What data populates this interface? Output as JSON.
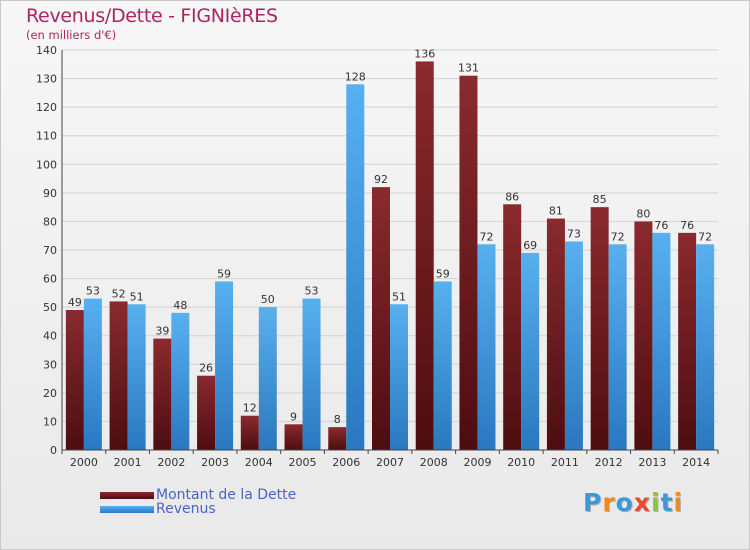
{
  "header": {
    "title": "Revenus/Dette - FIGNIèRES",
    "subtitle": "(en milliers d'€)"
  },
  "legend": {
    "debt_label": "Montant de la Dette",
    "revenue_label": "Revenus"
  },
  "logo": {
    "text": "Proxiti",
    "letter_colors": [
      "#3a9ad9",
      "#f08a1c",
      "#3a9ad9",
      "#e84a2a",
      "#8bc43f",
      "#3a9ad9",
      "#f08a1c"
    ]
  },
  "colors": {
    "debt": "#7a1e22",
    "debt_dark": "#4d0d10",
    "revenue": "#4aa3e6",
    "revenue_dark": "#2a78c0",
    "accent": "#b0235f",
    "legend_text": "#4a63c8"
  },
  "chart_data": {
    "type": "bar",
    "title": "Revenus/Dette - FIGNIèRES",
    "subtitle": "(en milliers d'€)",
    "categories": [
      "2000",
      "2001",
      "2002",
      "2003",
      "2004",
      "2005",
      "2006",
      "2007",
      "2008",
      "2009",
      "2010",
      "2011",
      "2012",
      "2013",
      "2014"
    ],
    "series": [
      {
        "name": "Montant de la Dette",
        "values": [
          49,
          52,
          39,
          26,
          12,
          9,
          8,
          92,
          136,
          131,
          86,
          81,
          85,
          80,
          76
        ]
      },
      {
        "name": "Revenus",
        "values": [
          53,
          51,
          48,
          59,
          50,
          53,
          128,
          51,
          59,
          72,
          69,
          73,
          72,
          76,
          72
        ]
      }
    ],
    "yticks": [
      0,
      10,
      20,
      30,
      40,
      50,
      60,
      70,
      80,
      90,
      100,
      110,
      120,
      130,
      140
    ],
    "ylim": [
      0,
      140
    ],
    "grid": true,
    "legend_position": "bottom-left"
  }
}
